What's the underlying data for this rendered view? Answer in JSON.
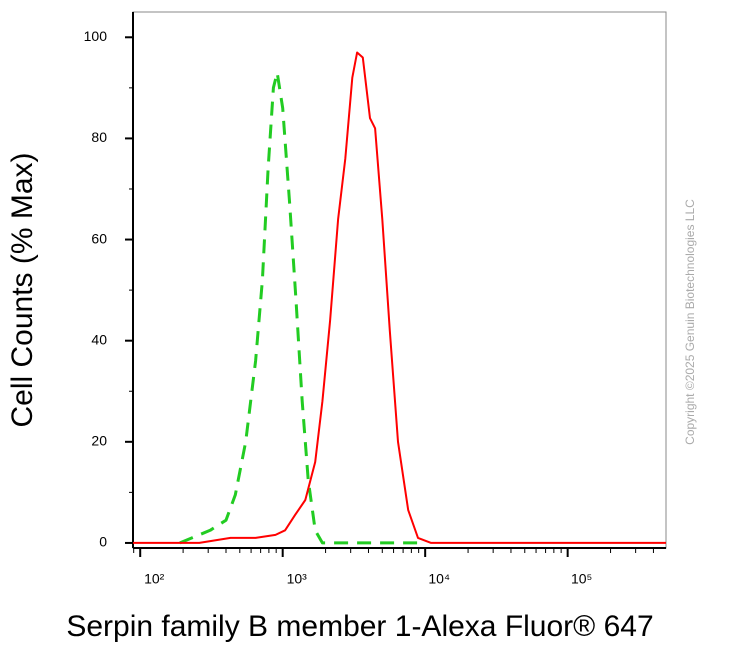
{
  "chart_data": {
    "type": "line",
    "y_label": "Cell Counts (% Max)",
    "x_label": "Serpin family B member 1-Alexa Fluor® 647",
    "annotation": "Copyright ©2025 Genuin Biotechnologies LLC",
    "xscale": "log",
    "xlim": [
      89,
      490000
    ],
    "ylim": [
      -1,
      105
    ],
    "xticks": [
      {
        "value": 100,
        "label": "10²"
      },
      {
        "value": 1000,
        "label": "10³"
      },
      {
        "value": 10000,
        "label": "10⁴"
      },
      {
        "value": 100000,
        "label": "10⁵"
      }
    ],
    "yticks": [
      0,
      20,
      40,
      60,
      80,
      100
    ],
    "grid": false,
    "series": [
      {
        "color": "#22cc22",
        "dash": true,
        "x": [
          190,
          310,
          400,
          465,
          550,
          645,
          720,
          790,
          860,
          915,
          1000,
          1120,
          1240,
          1370,
          1510,
          1690,
          1900,
          9100
        ],
        "values": [
          0,
          2.5,
          4.5,
          9.5,
          20,
          36,
          52,
          74,
          90,
          93,
          86,
          67,
          48,
          28,
          12.5,
          2.5,
          0,
          0
        ]
      },
      {
        "color": "#ff0000",
        "dash": false,
        "x": [
          89,
          260,
          430,
          645,
          890,
          1040,
          1220,
          1440,
          1690,
          1900,
          2150,
          2450,
          2750,
          3080,
          3330,
          3650,
          4100,
          4450,
          5000,
          5650,
          6450,
          7600,
          8900,
          11000,
          490000
        ],
        "values": [
          0,
          0,
          1,
          1,
          1.6,
          2.5,
          5.5,
          8.5,
          16,
          28,
          44,
          64,
          76,
          92,
          97,
          96,
          84,
          82,
          64,
          42,
          20,
          6.5,
          1,
          0,
          0
        ]
      }
    ]
  }
}
